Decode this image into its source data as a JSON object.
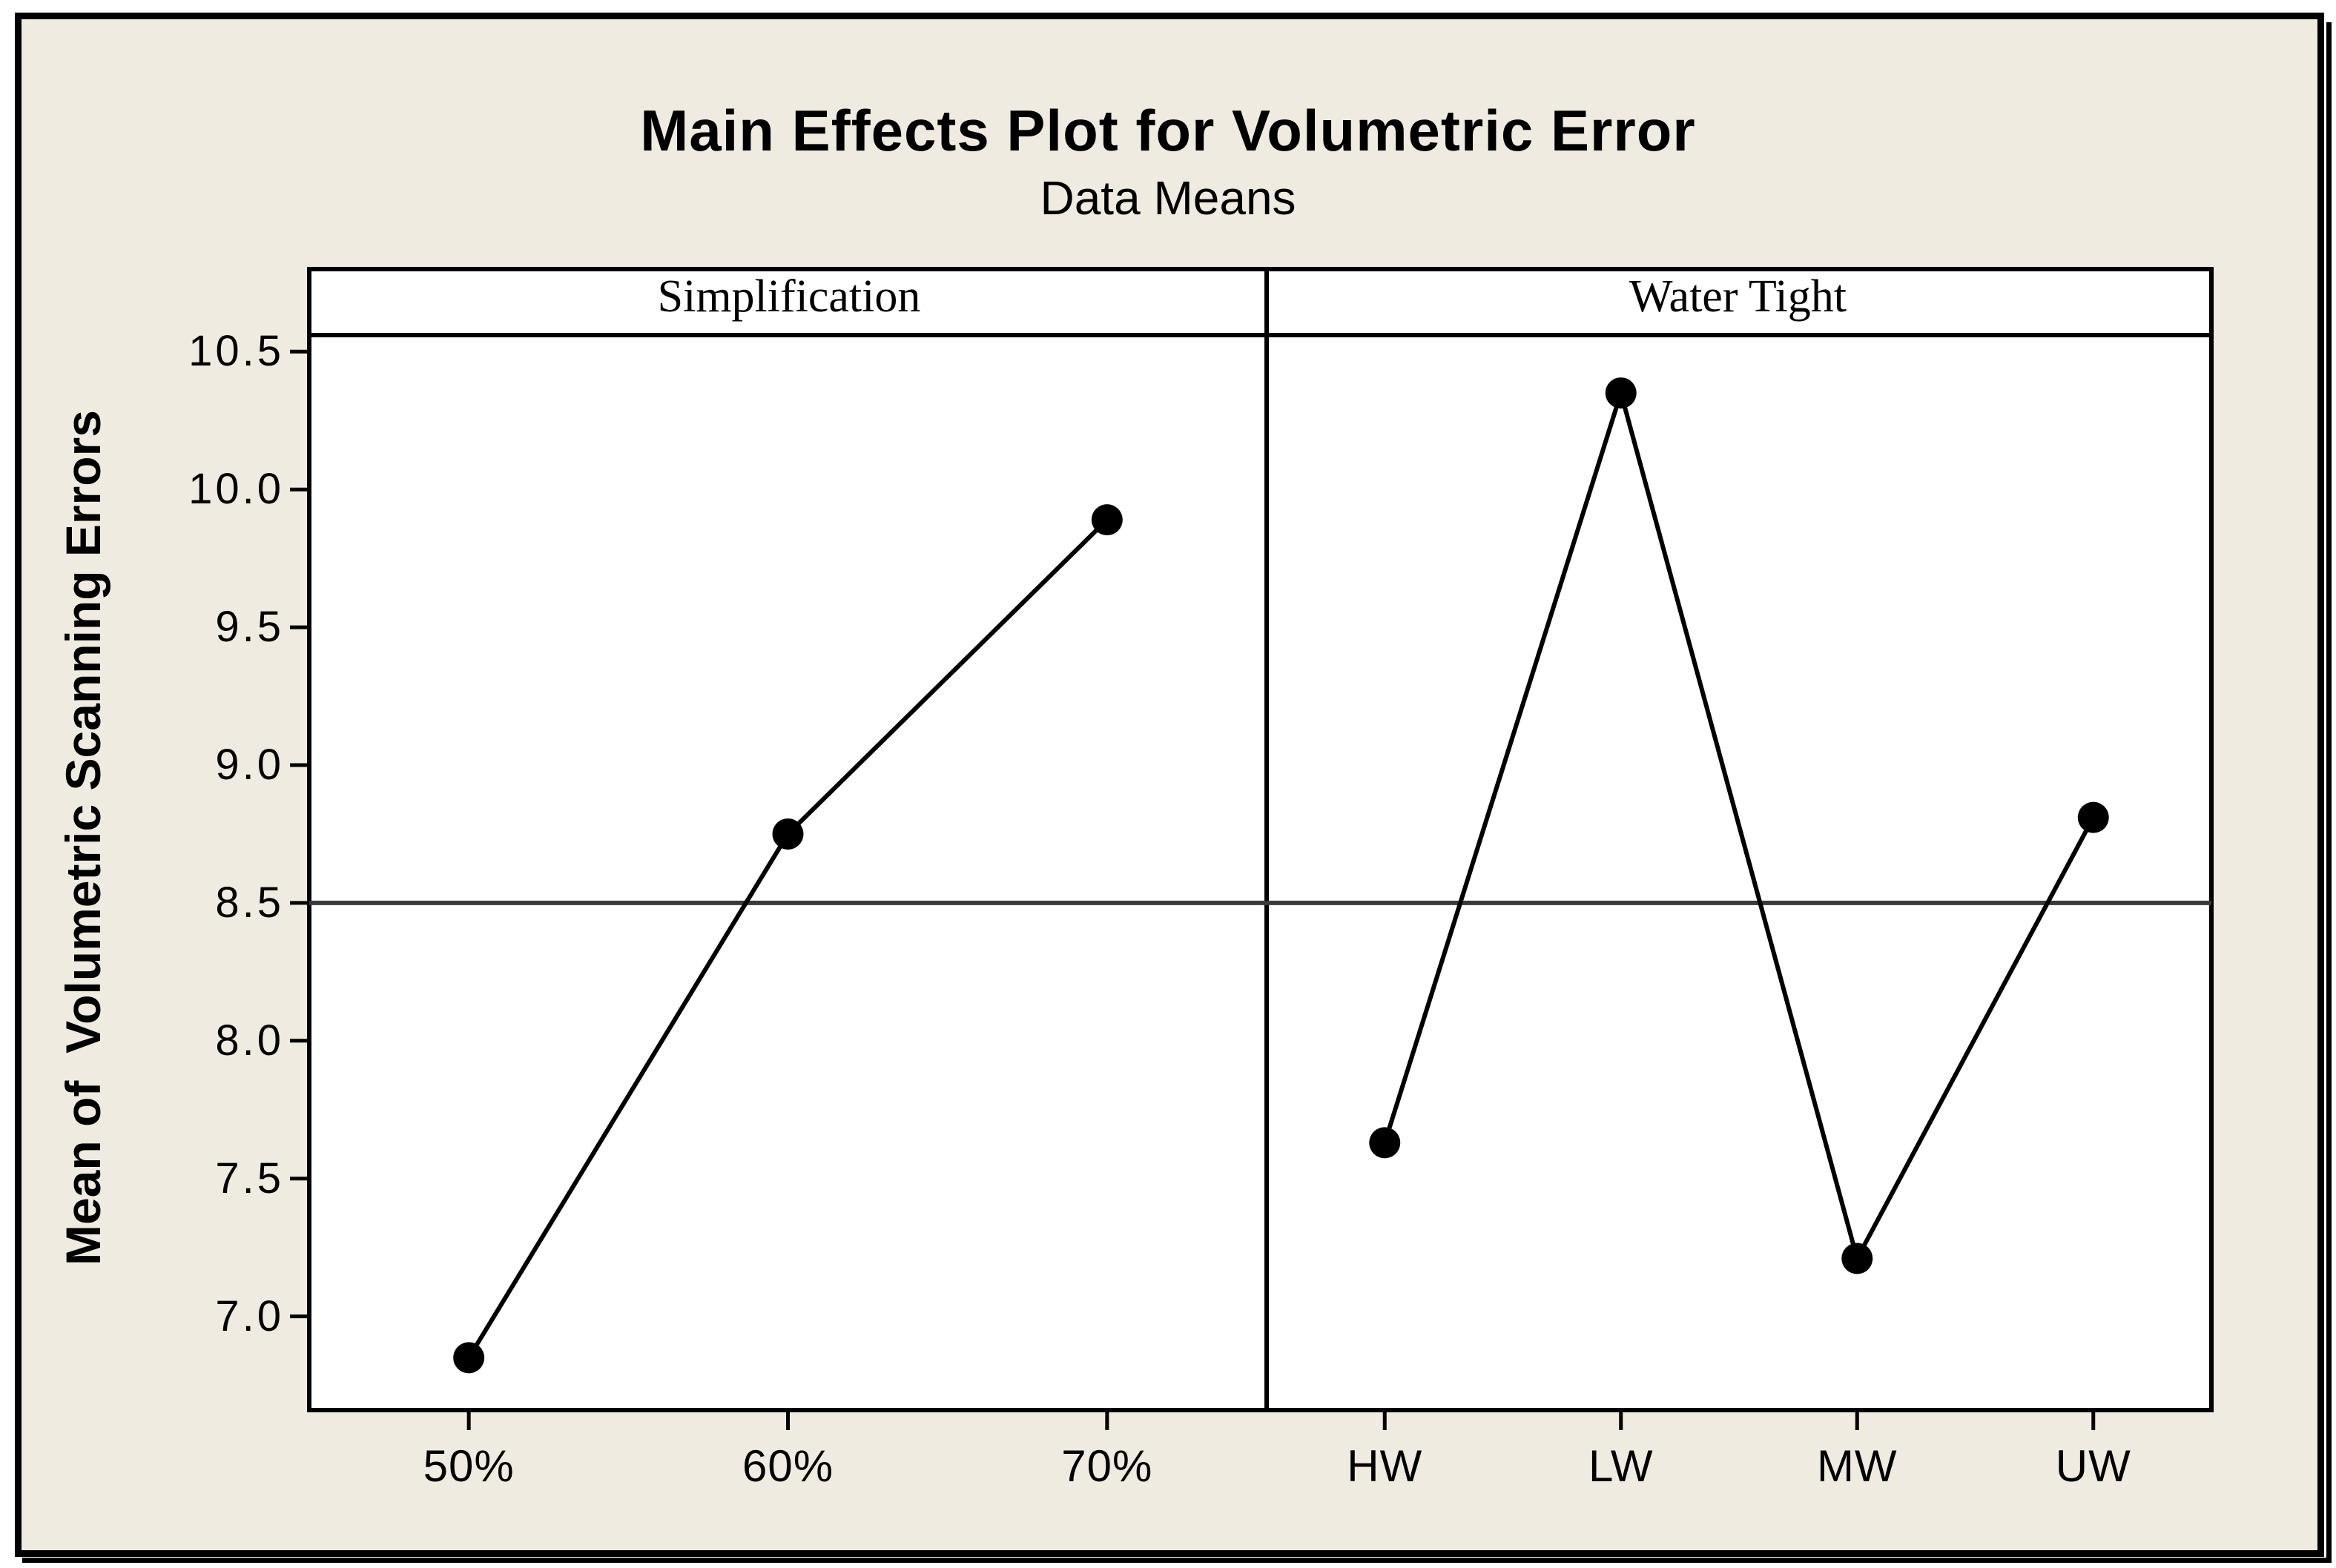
{
  "figure": {
    "title": "Main Effects Plot for Volumetric Error",
    "subtitle": "Data Means",
    "y_axis_label": "Mean of  Volumetric Scanning Errors"
  },
  "colors": {
    "background": "#EFEBE0",
    "plot_background": "#FFFFFF",
    "frame": "#000000",
    "series": "#000000",
    "mean_line": "#3A3A3A"
  },
  "chart_data": {
    "type": "line",
    "title": "Main Effects Plot for Volumetric Error",
    "subtitle": "Data Means",
    "ylabel": "Mean of  Volumetric Scanning Errors",
    "ylim": [
      6.66,
      10.56
    ],
    "grid": false,
    "legend": "none",
    "reference_line_mean": 8.5,
    "yticks": [
      {
        "label": "10.5",
        "value": 10.5
      },
      {
        "label": "10.0",
        "value": 10.0
      },
      {
        "label": "9.5",
        "value": 9.5
      },
      {
        "label": "9.0",
        "value": 9.0
      },
      {
        "label": "8.5",
        "value": 8.5
      },
      {
        "label": "8.0",
        "value": 8.0
      },
      {
        "label": "7.5",
        "value": 7.5
      },
      {
        "label": "7.0",
        "value": 7.0
      }
    ],
    "panels": [
      {
        "header": "Simplification",
        "categories": [
          "50%",
          "60%",
          "70%"
        ],
        "values": [
          6.85,
          8.75,
          9.89
        ]
      },
      {
        "header": "Water Tight",
        "categories": [
          "HW",
          "LW",
          "MW",
          "UW"
        ],
        "values": [
          7.63,
          10.35,
          7.21,
          8.81
        ]
      }
    ]
  }
}
